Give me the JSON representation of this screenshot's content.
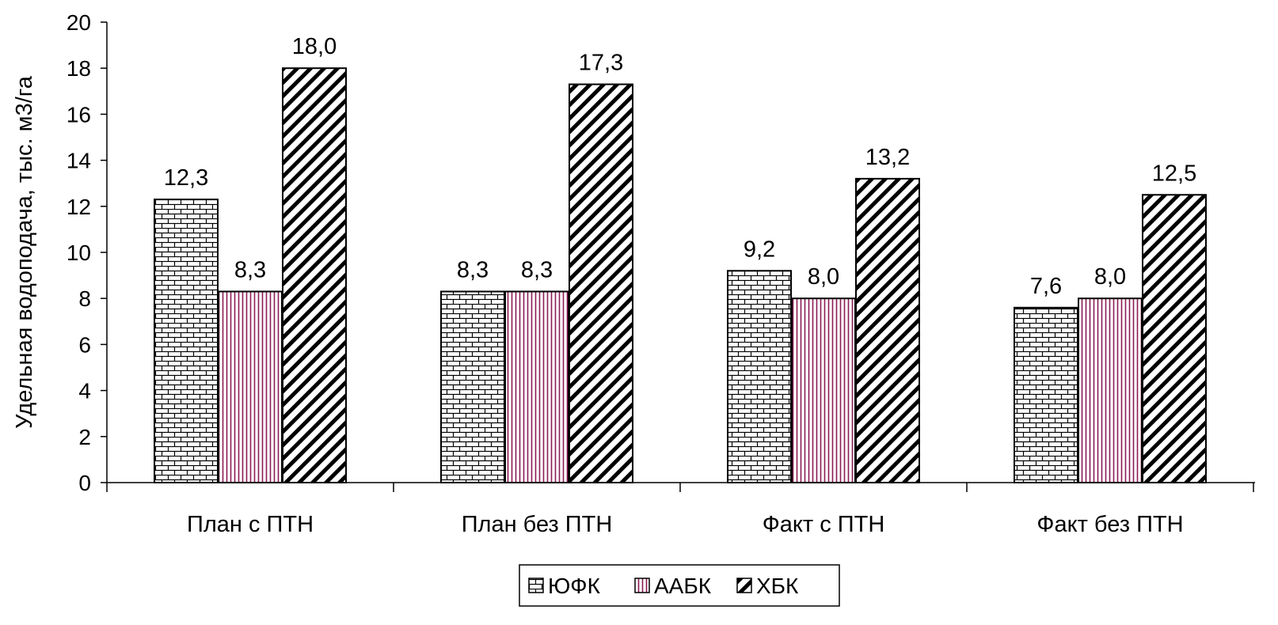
{
  "chart_data": {
    "type": "bar",
    "title": "",
    "xlabel": "",
    "ylabel": "Удельная водоподача, тыс. м3/га",
    "ylim": [
      0,
      20
    ],
    "yticks": [
      0,
      2,
      4,
      6,
      8,
      10,
      12,
      14,
      16,
      18,
      20
    ],
    "grid": false,
    "legend_position": "bottom",
    "categories": [
      "План с ПТН",
      "План без ПТН",
      "Факт с ПТН",
      "Факт без ПТН"
    ],
    "series": [
      {
        "name": "ЮФК",
        "values": [
          12.3,
          8.3,
          9.2,
          7.6
        ],
        "labels": [
          "12,3",
          "8,3",
          "9,2",
          "7,6"
        ],
        "pattern": "brick",
        "color": "#000000"
      },
      {
        "name": "ААБК",
        "values": [
          8.3,
          8.3,
          8.0,
          8.0
        ],
        "labels": [
          "8,3",
          "8,3",
          "8,0",
          "8,0"
        ],
        "pattern": "vertical-lines",
        "color": "#8b1a55"
      },
      {
        "name": "ХБК",
        "values": [
          18.0,
          17.3,
          13.2,
          12.5
        ],
        "labels": [
          "18,0",
          "17,3",
          "13,2",
          "12,5"
        ],
        "pattern": "diagonal-lines",
        "color": "#000000"
      }
    ]
  }
}
